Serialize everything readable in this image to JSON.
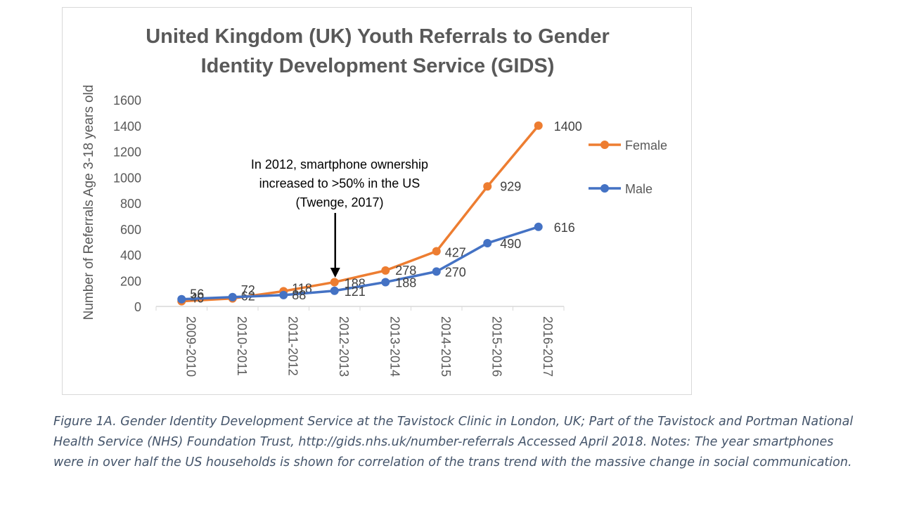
{
  "chart_data": {
    "type": "line",
    "title_lines": [
      "United Kingdom (UK) Youth Referrals to Gender",
      "Identity Development Service (GIDS)"
    ],
    "ylabel": "Number of Referrals Age 3-18 years old",
    "xlabel": "",
    "ylim": [
      0,
      1600
    ],
    "yticks": [
      0,
      200,
      400,
      600,
      800,
      1000,
      1200,
      1400,
      1600
    ],
    "categories": [
      "2009-2010",
      "2010-2011",
      "2011-2012",
      "2012-2013",
      "2013-2014",
      "2014-2015",
      "2015-2016",
      "2016-2017"
    ],
    "series": [
      {
        "name": "Female",
        "color": "#ed7d31",
        "values": [
          40,
          62,
          118,
          188,
          278,
          427,
          929,
          1400
        ]
      },
      {
        "name": "Male",
        "color": "#4472c4",
        "values": [
          56,
          72,
          88,
          121,
          188,
          270,
          490,
          616
        ]
      }
    ],
    "grid": false,
    "legend_position": "right",
    "annotation": {
      "lines": [
        "In 2012, smartphone ownership",
        "increased to >50% in the US",
        "(Twenge, 2017)"
      ],
      "category": "2012-2013"
    }
  },
  "caption": "Figure 1A. Gender Identity Development Service at the Tavistock Clinic in London, UK; Part of the Tavistock and Portman National Health Service (NHS) Foundation Trust, http://gids.nhs.uk/number-referrals Accessed April 2018. Notes: The year smartphones were in over half the US households is shown for correlation of the trans trend with the massive change in social communication."
}
